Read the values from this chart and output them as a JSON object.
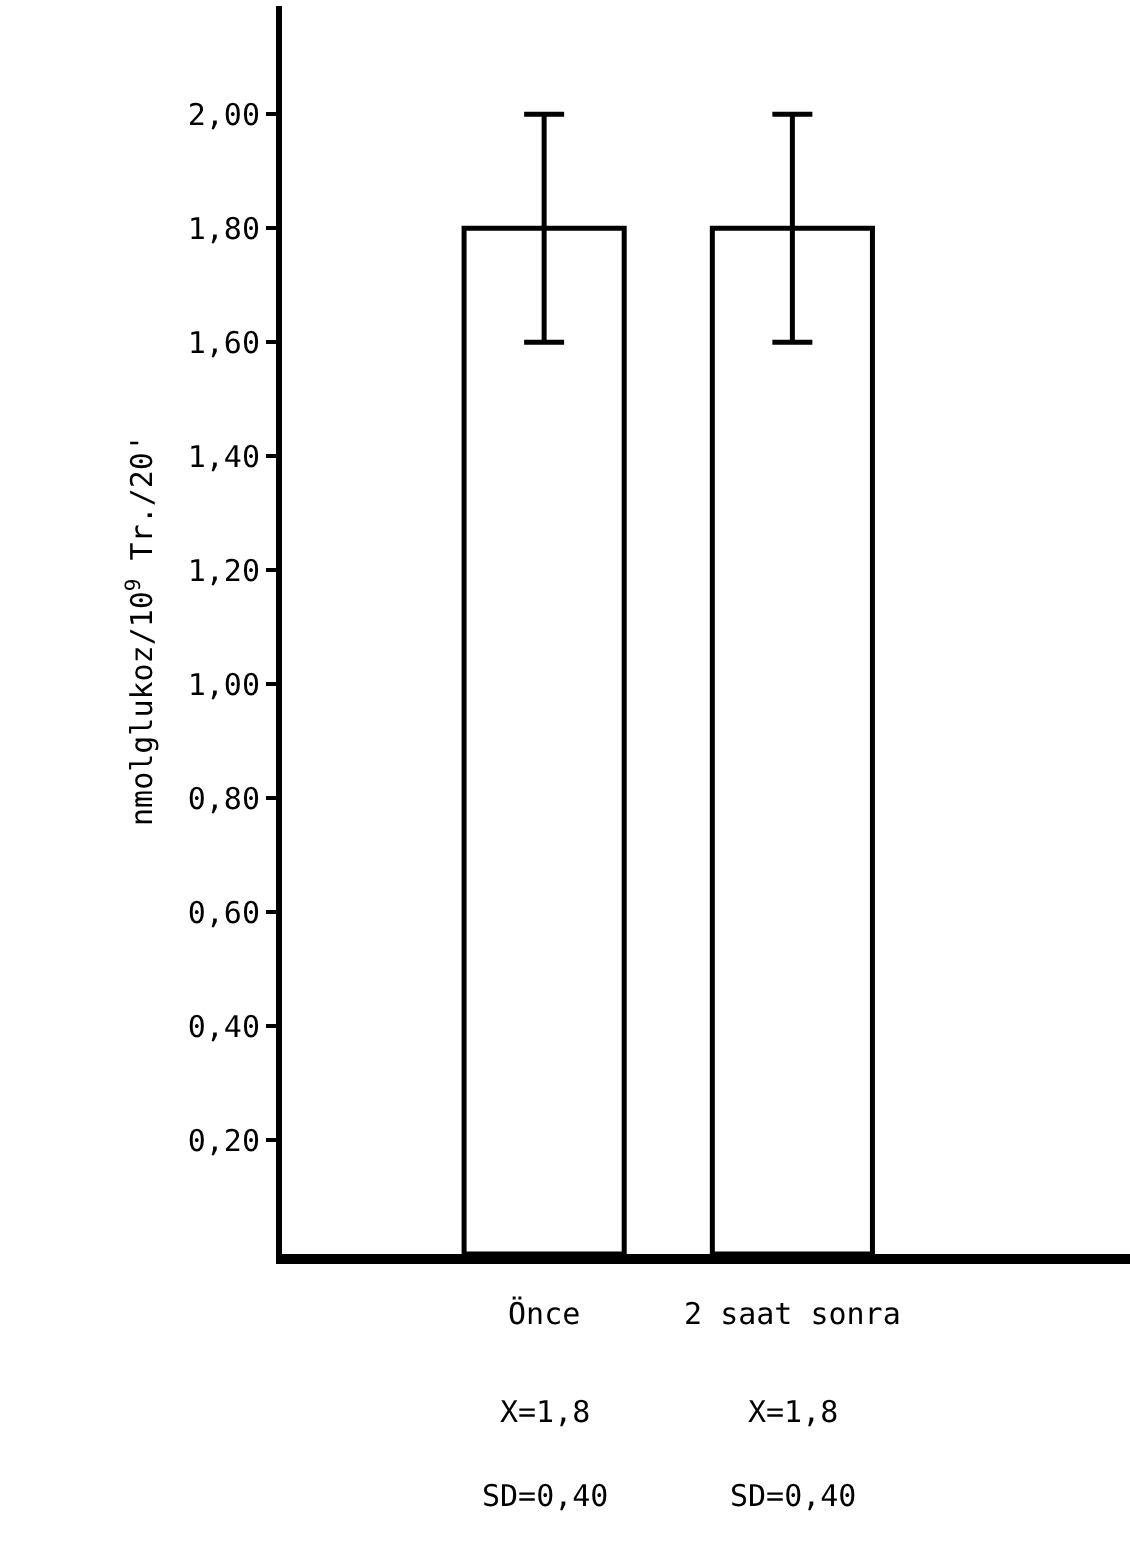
{
  "chart_data": {
    "type": "bar",
    "ylabel": "nmolglukoz/10$^{9}$ Tr./20'",
    "categories": [
      "Önce",
      "2 saat sonra"
    ],
    "values": [
      1.8,
      1.8
    ],
    "errors": [
      0.2,
      0.2
    ],
    "color": "#ffffff",
    "ylim": [
      0,
      2.19
    ],
    "yticks": [
      {
        "value": 0.2,
        "label": "0,20"
      },
      {
        "value": 0.4,
        "label": "0,40"
      },
      {
        "value": 0.6,
        "label": "0,60"
      },
      {
        "value": 0.8,
        "label": "0,80"
      },
      {
        "value": 1.0,
        "label": "1,00"
      },
      {
        "value": 1.2,
        "label": "1,20"
      },
      {
        "value": 1.4,
        "label": "1,40"
      },
      {
        "value": 1.6,
        "label": "1,60"
      },
      {
        "value": 1.8,
        "label": "1,80"
      },
      {
        "value": 2.0,
        "label": "2,00"
      }
    ],
    "grid": false,
    "annotations": [
      "X=1,8",
      "X=1,8",
      "SD=0,40",
      "SD=0,40"
    ]
  }
}
